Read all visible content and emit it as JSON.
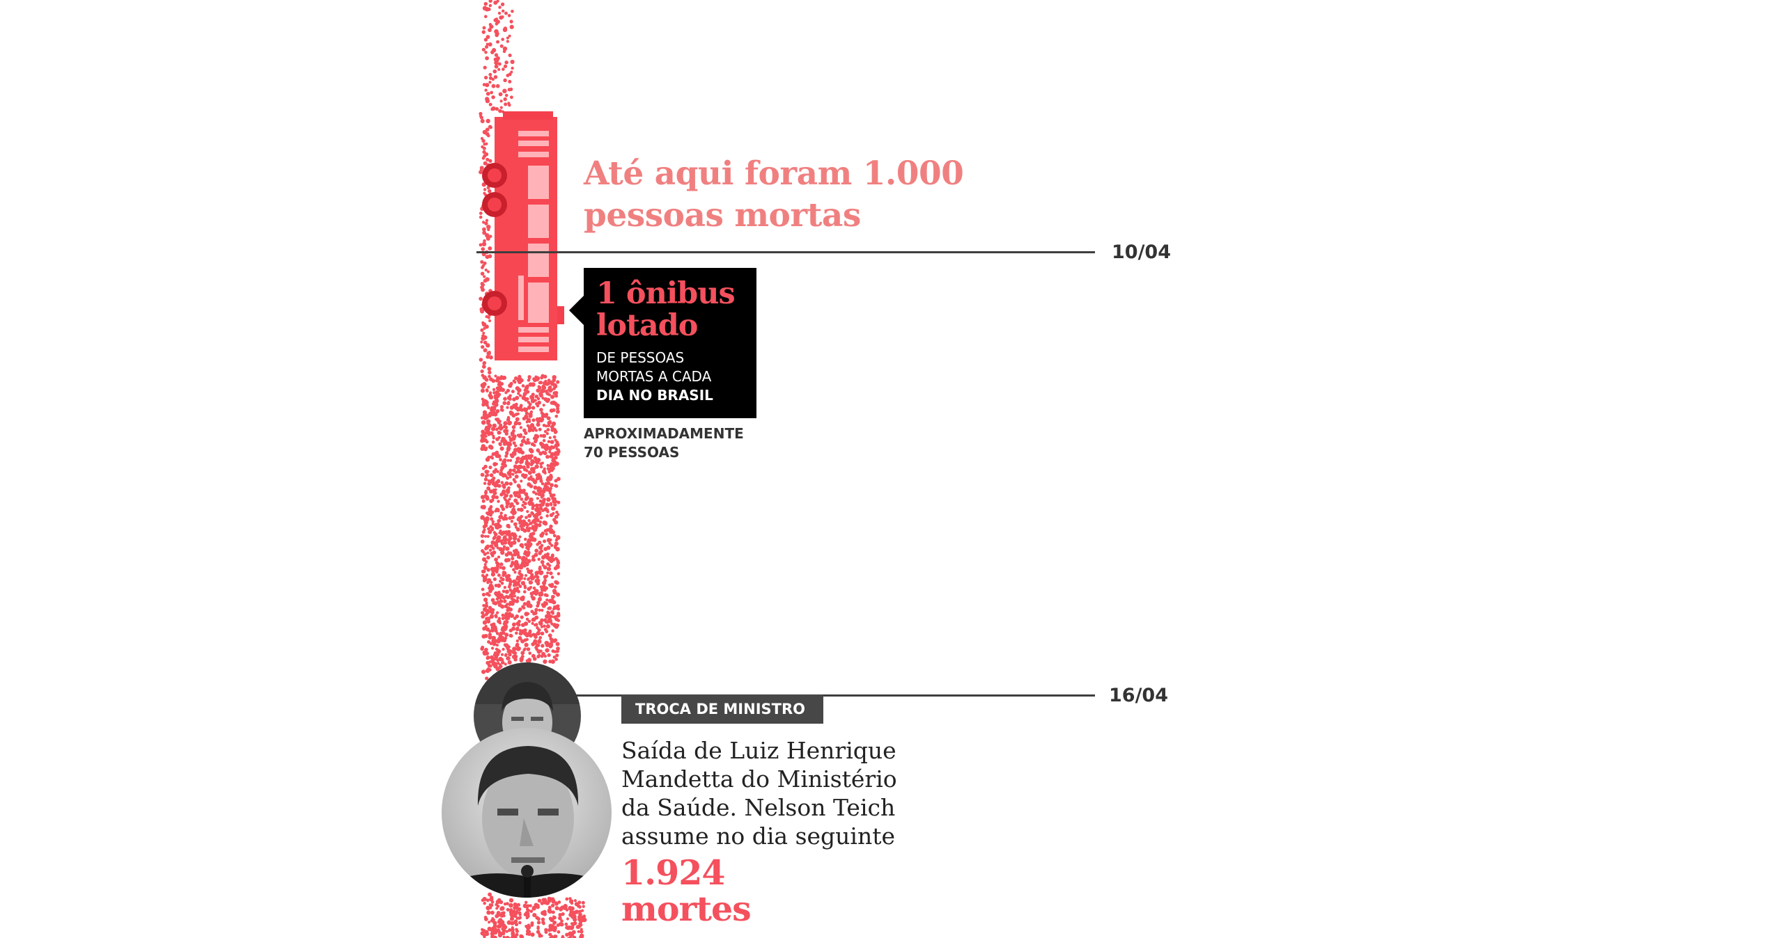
{
  "colors": {
    "accent": "#f4505d",
    "headline": "#f08080",
    "dots": "#f4505d",
    "line": "#3e3e3e",
    "callout_bg": "#000000",
    "badge_bg": "#474747"
  },
  "icons": {
    "bus": "bus-icon",
    "portrait_small": "portrait-icon",
    "portrait_large": "portrait-icon"
  },
  "milestone": {
    "headline_line1": "Até aqui foram 1.000",
    "headline_line2": "pessoas mortas",
    "date": "10/04"
  },
  "callout": {
    "big_line1": "1 ônibus",
    "big_line2": "lotado",
    "small_line1": "DE PESSOAS",
    "small_line2": "MORTAS A CADA",
    "small_bold": "DIA NO BRASIL",
    "approx_line1": "APROXIMADAMENTE",
    "approx_line2": "70 PESSOAS"
  },
  "event": {
    "date": "16/04",
    "badge": "TROCA DE MINISTRO",
    "text_line1": "Saída de Luiz Henrique",
    "text_line2": "Mandetta do Ministério",
    "text_line3": "da Saúde. Nelson Teich",
    "text_line4": "assume no dia seguinte",
    "deaths_value": "1.924",
    "deaths_label": "mortes"
  }
}
